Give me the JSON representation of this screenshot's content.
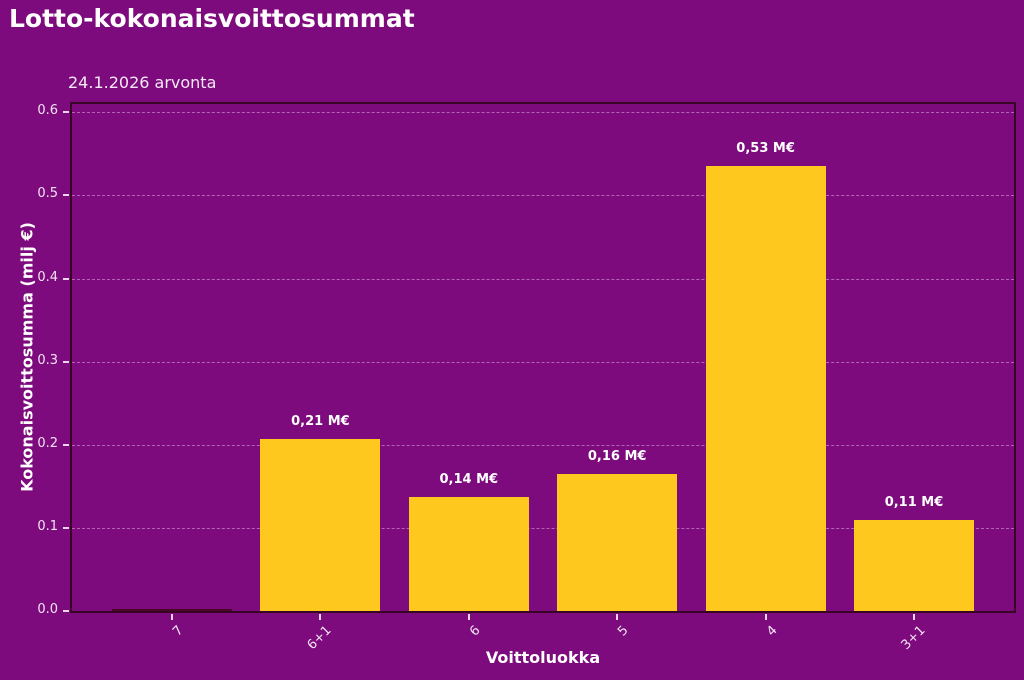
{
  "chart_data": {
    "type": "bar",
    "title": "Lotto-kokonaisvoittosummat",
    "subtitle": "24.1.2026 arvonta",
    "xlabel": "Voittoluokka",
    "ylabel": "Kokonaisvoittosumma (milj €)",
    "categories": [
      "7",
      "6+1",
      "6",
      "5",
      "4",
      "3+1"
    ],
    "values": [
      0.002,
      0.207,
      0.137,
      0.165,
      0.535,
      0.109
    ],
    "bar_labels": [
      "",
      "0,21 M€",
      "0,14 M€",
      "0,16 M€",
      "0,53 M€",
      "0,11 M€"
    ],
    "bar_colors": [
      "#4A0628",
      "#FFC81E",
      "#FFC81E",
      "#FFC81E",
      "#FFC81E",
      "#FFC81E"
    ],
    "yticks": [
      0.0,
      0.1,
      0.2,
      0.3,
      0.4,
      0.5,
      0.6
    ],
    "ytick_labels": [
      "0.0",
      "0.1",
      "0.2",
      "0.3",
      "0.4",
      "0.5",
      "0.6"
    ],
    "ylim": [
      0,
      0.61
    ],
    "grid": "horizontal-dashed",
    "legend": "none",
    "colors": {
      "background": "#7D0B7D",
      "bar": "#FFC81E",
      "spine": "#390524",
      "grid": "#E4AFE4",
      "tick_text": "#F2E4F2",
      "text": "#FFFFFF"
    }
  }
}
